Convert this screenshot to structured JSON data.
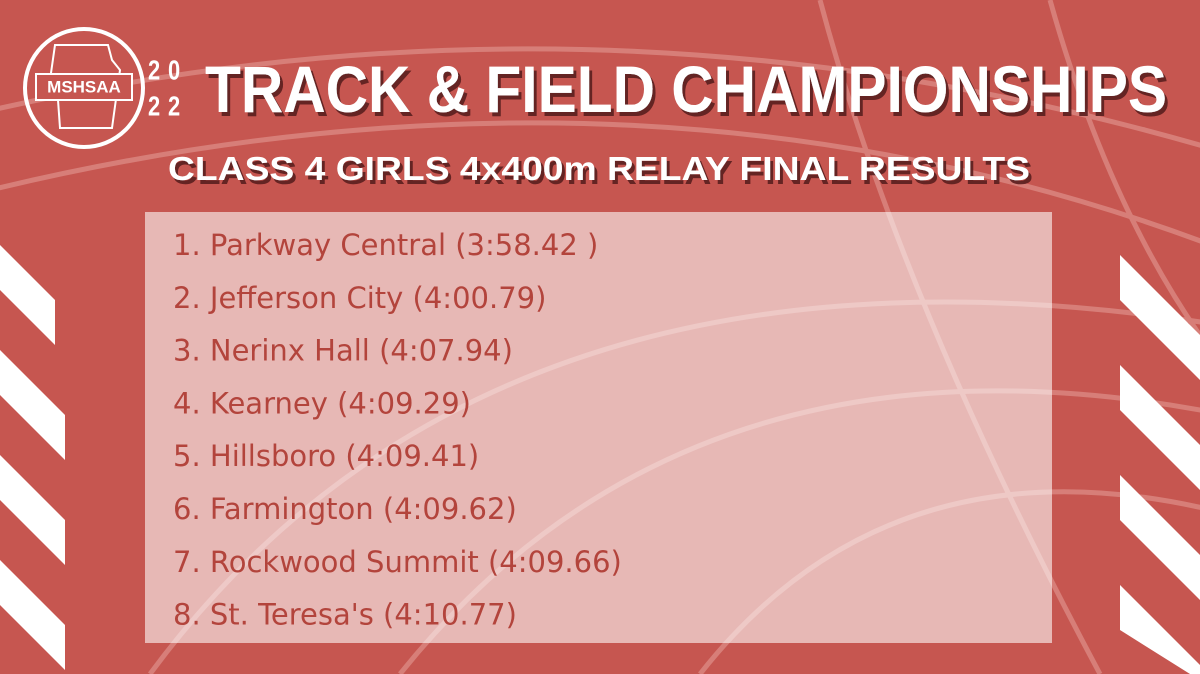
{
  "logo": {
    "text": "MSHSAA"
  },
  "header": {
    "year": [
      "20",
      "22"
    ],
    "title": "TRACK & FIELD CHAMPIONSHIPS",
    "subtitle": "CLASS 4 GIRLS 4x400m RELAY FINAL RESULTS"
  },
  "results": [
    "1. Parkway Central (3:58.42 )",
    "2. Jefferson City (4:00.79)",
    "3. Nerinx Hall (4:07.94)",
    "4. Kearney (4:09.29)",
    "5. Hillsboro (4:09.41)",
    "6. Farmington (4:09.62)",
    "7. Rockwood Summit (4:09.66)",
    "8. St. Teresa's (4:10.77)"
  ]
}
